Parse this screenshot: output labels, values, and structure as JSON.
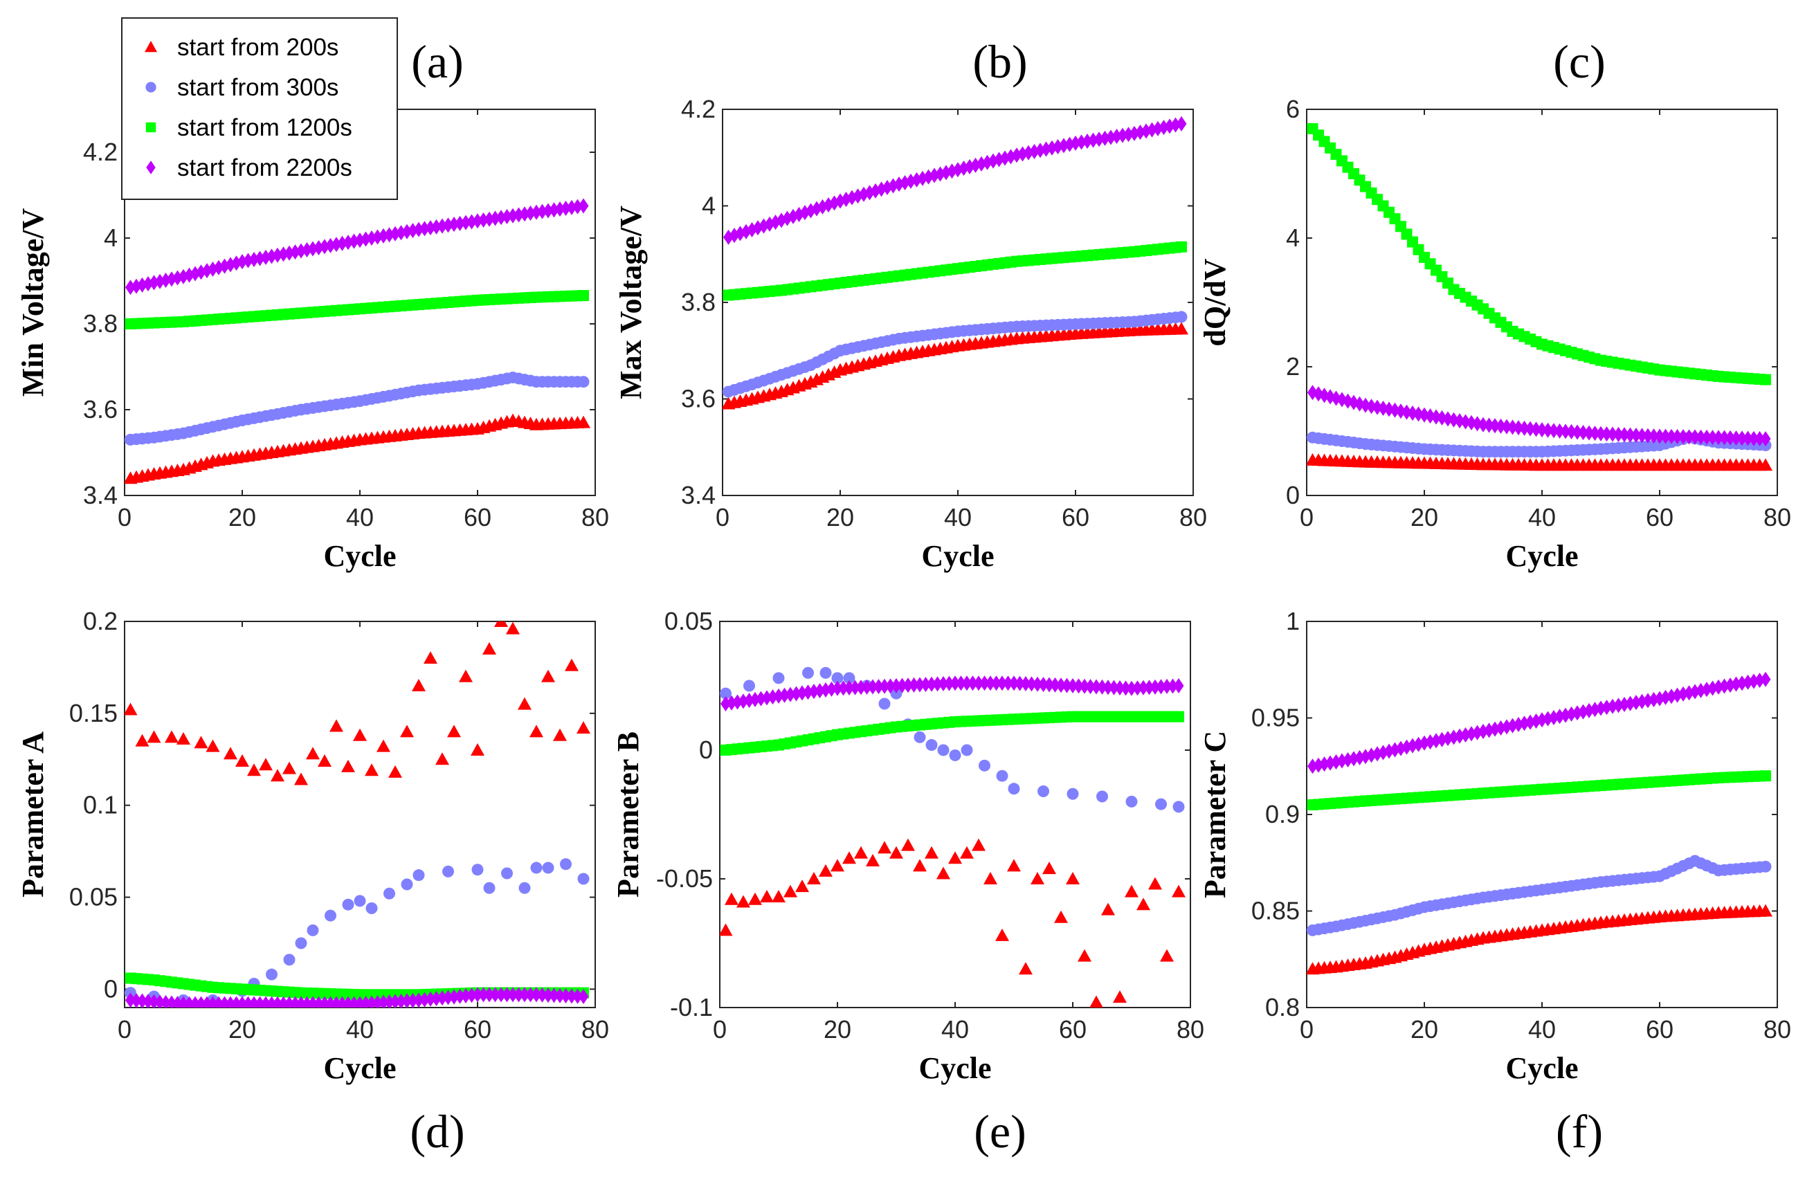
{
  "legend": {
    "entries": [
      {
        "label": "start from 200s",
        "color": "#ff0000",
        "marker": "triangle"
      },
      {
        "label": "start from 300s",
        "color": "#8080ff",
        "marker": "circle"
      },
      {
        "label": "start from 1200s",
        "color": "#00ff00",
        "marker": "square"
      },
      {
        "label": "start from 2200s",
        "color": "#bf00ff",
        "marker": "diamond"
      }
    ]
  },
  "chart_data": [
    {
      "id": "a",
      "panel_label": "(a)",
      "type": "scatter",
      "xlabel": "Cycle",
      "ylabel": "Min Voltage/V",
      "xlim": [
        0,
        80
      ],
      "ylim": [
        3.4,
        4.3
      ],
      "xticks": [
        "0",
        "20",
        "40",
        "60",
        "80"
      ],
      "xtick_values": [
        0,
        20,
        40,
        60,
        80
      ],
      "yticks": [
        "3.4",
        "3.6",
        "3.8",
        "4",
        "4.2"
      ],
      "ytick_values": [
        3.4,
        3.6,
        3.8,
        4.0,
        4.2
      ],
      "series": [
        {
          "name": "start from 200s",
          "x": [
            1,
            5,
            10,
            15,
            20,
            30,
            40,
            50,
            60,
            66,
            70,
            78
          ],
          "y": [
            3.44,
            3.45,
            3.46,
            3.48,
            3.49,
            3.51,
            3.53,
            3.545,
            3.555,
            3.575,
            3.565,
            3.57
          ]
        },
        {
          "name": "start from 300s",
          "x": [
            1,
            5,
            10,
            15,
            20,
            30,
            40,
            50,
            60,
            66,
            70,
            78
          ],
          "y": [
            3.53,
            3.535,
            3.545,
            3.56,
            3.575,
            3.6,
            3.62,
            3.645,
            3.66,
            3.675,
            3.665,
            3.665
          ]
        },
        {
          "name": "start from 1200s",
          "x": [
            1,
            10,
            20,
            30,
            40,
            50,
            60,
            70,
            78
          ],
          "y": [
            3.8,
            3.805,
            3.815,
            3.825,
            3.835,
            3.845,
            3.855,
            3.862,
            3.866
          ]
        },
        {
          "name": "start from 2200s",
          "x": [
            1,
            10,
            20,
            30,
            40,
            50,
            60,
            70,
            78
          ],
          "y": [
            3.885,
            3.91,
            3.945,
            3.97,
            3.995,
            4.02,
            4.04,
            4.06,
            4.075
          ]
        }
      ]
    },
    {
      "id": "b",
      "panel_label": "(b)",
      "type": "scatter",
      "xlabel": "Cycle",
      "ylabel": "Max Voltage/V",
      "xlim": [
        0,
        80
      ],
      "ylim": [
        3.4,
        4.2
      ],
      "xticks": [
        "0",
        "20",
        "40",
        "60",
        "80"
      ],
      "xtick_values": [
        0,
        20,
        40,
        60,
        80
      ],
      "yticks": [
        "3.4",
        "3.6",
        "3.8",
        "4",
        "4.2"
      ],
      "ytick_values": [
        3.4,
        3.6,
        3.8,
        4.0,
        4.2
      ],
      "series": [
        {
          "name": "start from 200s",
          "x": [
            1,
            5,
            10,
            15,
            20,
            30,
            40,
            50,
            60,
            70,
            78
          ],
          "y": [
            3.59,
            3.6,
            3.615,
            3.635,
            3.66,
            3.69,
            3.71,
            3.725,
            3.735,
            3.742,
            3.745
          ]
        },
        {
          "name": "start from 300s",
          "x": [
            1,
            5,
            10,
            15,
            20,
            30,
            40,
            50,
            60,
            70,
            78
          ],
          "y": [
            3.615,
            3.63,
            3.65,
            3.67,
            3.7,
            3.725,
            3.74,
            3.75,
            3.755,
            3.76,
            3.77
          ]
        },
        {
          "name": "start from 1200s",
          "x": [
            1,
            10,
            20,
            30,
            40,
            50,
            60,
            70,
            78
          ],
          "y": [
            3.815,
            3.825,
            3.84,
            3.855,
            3.87,
            3.885,
            3.895,
            3.905,
            3.915
          ]
        },
        {
          "name": "start from 2200s",
          "x": [
            1,
            10,
            20,
            30,
            40,
            50,
            60,
            70,
            78
          ],
          "y": [
            3.935,
            3.97,
            4.01,
            4.045,
            4.075,
            4.105,
            4.13,
            4.15,
            4.17
          ]
        }
      ]
    },
    {
      "id": "c",
      "panel_label": "(c)",
      "type": "scatter",
      "xlabel": "Cycle",
      "ylabel": "dQ/dV",
      "xlim": [
        0,
        80
      ],
      "ylim": [
        0,
        6
      ],
      "xticks": [
        "0",
        "20",
        "40",
        "60",
        "80"
      ],
      "xtick_values": [
        0,
        20,
        40,
        60,
        80
      ],
      "yticks": [
        "0",
        "2",
        "4",
        "6"
      ],
      "ytick_values": [
        0,
        2,
        4,
        6
      ],
      "series": [
        {
          "name": "start from 200s",
          "x": [
            1,
            10,
            20,
            30,
            40,
            50,
            60,
            70,
            78
          ],
          "y": [
            0.55,
            0.52,
            0.5,
            0.48,
            0.47,
            0.47,
            0.47,
            0.47,
            0.47
          ]
        },
        {
          "name": "start from 300s",
          "x": [
            1,
            10,
            20,
            30,
            40,
            50,
            60,
            65,
            70,
            78
          ],
          "y": [
            0.9,
            0.8,
            0.72,
            0.68,
            0.68,
            0.72,
            0.78,
            0.9,
            0.82,
            0.78
          ]
        },
        {
          "name": "start from 1200s",
          "x": [
            1,
            5,
            10,
            15,
            20,
            25,
            30,
            35,
            40,
            50,
            60,
            70,
            78
          ],
          "y": [
            5.7,
            5.3,
            4.8,
            4.3,
            3.7,
            3.2,
            2.9,
            2.55,
            2.35,
            2.1,
            1.95,
            1.85,
            1.8
          ]
        },
        {
          "name": "start from 2200s",
          "x": [
            1,
            10,
            20,
            30,
            40,
            50,
            60,
            70,
            78
          ],
          "y": [
            1.6,
            1.4,
            1.25,
            1.1,
            1.02,
            0.96,
            0.92,
            0.9,
            0.88
          ]
        }
      ]
    },
    {
      "id": "d",
      "panel_label": "(d)",
      "type": "scatter",
      "xlabel": "Cycle",
      "ylabel": "Parameter A",
      "xlim": [
        0,
        80
      ],
      "ylim": [
        -0.01,
        0.2
      ],
      "xticks": [
        "0",
        "20",
        "40",
        "60",
        "80"
      ],
      "xtick_values": [
        0,
        20,
        40,
        60,
        80
      ],
      "yticks": [
        "0",
        "0.05",
        "0.1",
        "0.15",
        "0.2"
      ],
      "ytick_values": [
        0,
        0.05,
        0.1,
        0.15,
        0.2
      ],
      "series": [
        {
          "name": "start from 200s",
          "x": [
            1,
            3,
            5,
            8,
            10,
            13,
            15,
            18,
            20,
            22,
            24,
            26,
            28,
            30,
            32,
            34,
            36,
            38,
            40,
            42,
            44,
            46,
            48,
            50,
            52,
            54,
            56,
            58,
            60,
            62,
            64,
            66,
            68,
            70,
            72,
            74,
            76,
            78
          ],
          "y": [
            0.152,
            0.135,
            0.137,
            0.137,
            0.136,
            0.134,
            0.132,
            0.128,
            0.124,
            0.119,
            0.122,
            0.116,
            0.12,
            0.114,
            0.128,
            0.124,
            0.143,
            0.121,
            0.138,
            0.119,
            0.132,
            0.118,
            0.14,
            0.165,
            0.18,
            0.125,
            0.14,
            0.17,
            0.13,
            0.185,
            0.2,
            0.196,
            0.155,
            0.14,
            0.17,
            0.138,
            0.176,
            0.142
          ]
        },
        {
          "name": "start from 300s",
          "x": [
            1,
            5,
            10,
            15,
            20,
            22,
            25,
            28,
            30,
            32,
            35,
            38,
            40,
            42,
            45,
            48,
            50,
            55,
            60,
            62,
            65,
            68,
            70,
            72,
            75,
            78
          ],
          "y": [
            -0.002,
            -0.004,
            -0.006,
            -0.006,
            -0.001,
            0.003,
            0.008,
            0.016,
            0.025,
            0.032,
            0.04,
            0.046,
            0.048,
            0.044,
            0.052,
            0.057,
            0.062,
            0.064,
            0.065,
            0.055,
            0.063,
            0.055,
            0.066,
            0.066,
            0.068,
            0.06
          ]
        },
        {
          "name": "start from 1200s",
          "x": [
            1,
            5,
            10,
            15,
            20,
            30,
            40,
            50,
            60,
            70,
            78
          ],
          "y": [
            0.006,
            0.005,
            0.003,
            0.001,
            0.0,
            -0.002,
            -0.003,
            -0.003,
            -0.002,
            -0.002,
            -0.002
          ]
        },
        {
          "name": "start from 2200s",
          "x": [
            1,
            10,
            20,
            30,
            40,
            50,
            60,
            70,
            78
          ],
          "y": [
            -0.006,
            -0.008,
            -0.008,
            -0.008,
            -0.008,
            -0.006,
            -0.003,
            -0.003,
            -0.004
          ]
        }
      ]
    },
    {
      "id": "e",
      "panel_label": "(e)",
      "type": "scatter",
      "xlabel": "Cycle",
      "ylabel": "Parameter B",
      "xlim": [
        0,
        80
      ],
      "ylim": [
        -0.1,
        0.05
      ],
      "xticks": [
        "0",
        "20",
        "40",
        "60",
        "80"
      ],
      "xtick_values": [
        0,
        20,
        40,
        60,
        80
      ],
      "yticks": [
        "-0.1",
        "-0.05",
        "0",
        "0.05"
      ],
      "ytick_values": [
        -0.1,
        -0.05,
        0,
        0.05
      ],
      "series": [
        {
          "name": "start from 200s",
          "x": [
            1,
            2,
            4,
            6,
            8,
            10,
            12,
            14,
            16,
            18,
            20,
            22,
            24,
            26,
            28,
            30,
            32,
            34,
            36,
            38,
            40,
            42,
            44,
            46,
            48,
            50,
            52,
            54,
            56,
            58,
            60,
            62,
            64,
            66,
            68,
            70,
            72,
            74,
            76,
            78
          ],
          "y": [
            -0.07,
            -0.058,
            -0.059,
            -0.058,
            -0.057,
            -0.057,
            -0.055,
            -0.053,
            -0.05,
            -0.047,
            -0.045,
            -0.042,
            -0.04,
            -0.043,
            -0.038,
            -0.04,
            -0.037,
            -0.045,
            -0.04,
            -0.048,
            -0.042,
            -0.04,
            -0.037,
            -0.05,
            -0.072,
            -0.045,
            -0.085,
            -0.05,
            -0.046,
            -0.065,
            -0.05,
            -0.08,
            -0.098,
            -0.062,
            -0.096,
            -0.055,
            -0.06,
            -0.052,
            -0.08,
            -0.055
          ]
        },
        {
          "name": "start from 300s",
          "x": [
            1,
            5,
            10,
            15,
            18,
            20,
            22,
            25,
            28,
            30,
            32,
            34,
            36,
            38,
            40,
            42,
            45,
            48,
            50,
            55,
            60,
            65,
            70,
            75,
            78
          ],
          "y": [
            0.022,
            0.025,
            0.028,
            0.03,
            0.03,
            0.028,
            0.028,
            0.025,
            0.018,
            0.022,
            0.01,
            0.005,
            0.002,
            0.0,
            -0.002,
            0.0,
            -0.006,
            -0.01,
            -0.015,
            -0.016,
            -0.017,
            -0.018,
            -0.02,
            -0.021,
            -0.022
          ]
        },
        {
          "name": "start from 1200s",
          "x": [
            1,
            10,
            20,
            30,
            40,
            50,
            60,
            70,
            78
          ],
          "y": [
            0.0,
            0.002,
            0.006,
            0.009,
            0.011,
            0.012,
            0.013,
            0.013,
            0.013
          ]
        },
        {
          "name": "start from 2200s",
          "x": [
            1,
            10,
            20,
            30,
            40,
            50,
            60,
            70,
            78
          ],
          "y": [
            0.018,
            0.021,
            0.024,
            0.025,
            0.026,
            0.026,
            0.025,
            0.024,
            0.025
          ]
        }
      ]
    },
    {
      "id": "f",
      "panel_label": "(f)",
      "type": "scatter",
      "xlabel": "Cycle",
      "ylabel": "Parameter C",
      "xlim": [
        0,
        80
      ],
      "ylim": [
        0.8,
        1.0
      ],
      "xticks": [
        "0",
        "20",
        "40",
        "60",
        "80"
      ],
      "xtick_values": [
        0,
        20,
        40,
        60,
        80
      ],
      "yticks": [
        "0.8",
        "0.85",
        "0.9",
        "0.95",
        "1"
      ],
      "ytick_values": [
        0.8,
        0.85,
        0.9,
        0.95,
        1.0
      ],
      "series": [
        {
          "name": "start from 200s",
          "x": [
            1,
            5,
            10,
            15,
            20,
            30,
            40,
            50,
            60,
            70,
            78
          ],
          "y": [
            0.82,
            0.821,
            0.823,
            0.826,
            0.83,
            0.836,
            0.84,
            0.844,
            0.847,
            0.849,
            0.85
          ]
        },
        {
          "name": "start from 300s",
          "x": [
            1,
            5,
            10,
            15,
            20,
            30,
            40,
            50,
            60,
            66,
            70,
            78
          ],
          "y": [
            0.84,
            0.842,
            0.845,
            0.848,
            0.852,
            0.857,
            0.861,
            0.865,
            0.868,
            0.876,
            0.871,
            0.873
          ]
        },
        {
          "name": "start from 1200s",
          "x": [
            1,
            10,
            20,
            30,
            40,
            50,
            60,
            70,
            78
          ],
          "y": [
            0.905,
            0.907,
            0.909,
            0.911,
            0.913,
            0.915,
            0.917,
            0.919,
            0.92
          ]
        },
        {
          "name": "start from 2200s",
          "x": [
            1,
            10,
            20,
            30,
            40,
            50,
            60,
            70,
            78
          ],
          "y": [
            0.925,
            0.93,
            0.937,
            0.943,
            0.949,
            0.955,
            0.96,
            0.966,
            0.97
          ]
        }
      ]
    }
  ]
}
